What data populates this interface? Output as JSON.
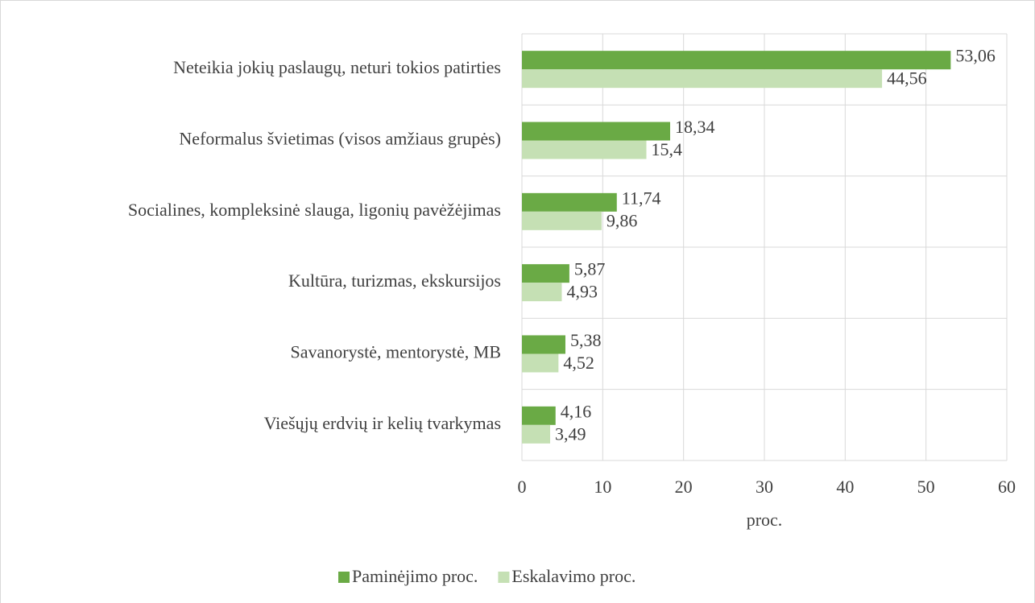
{
  "chart_data": {
    "type": "barh",
    "categories": [
      "Neteikia jokių paslaugų, neturi tokios patirties",
      "Neformalus švietimas (visos amžiaus grupės)",
      "Socialines, kompleksinė slauga, ligonių pavėžėjimas",
      "Kultūra, turizmas, ekskursijos",
      "Savanorystė, mentorystė, MB",
      "Viešųjų erdvių ir kelių tvarkymas"
    ],
    "series": [
      {
        "name": "Paminėjimo proc.",
        "color": "#6aaa45",
        "values": [
          53.06,
          18.34,
          11.74,
          5.87,
          5.38,
          4.16
        ],
        "value_labels": [
          "53,06",
          "18,34",
          "11,74",
          "5,87",
          "5,38",
          "4,16"
        ]
      },
      {
        "name": "Eskalavimo proc.",
        "color": "#c5e0b4",
        "values": [
          44.56,
          15.4,
          9.86,
          4.93,
          4.52,
          3.49
        ],
        "value_labels": [
          "44,56",
          "15,4",
          "9,86",
          "4,93",
          "4,52",
          "3,49"
        ]
      }
    ],
    "xlabel": "proc.",
    "xlim": [
      0,
      60
    ],
    "xticks": [
      0,
      10,
      20,
      30,
      40,
      50,
      60
    ],
    "grid": true,
    "legend": "bottom"
  }
}
